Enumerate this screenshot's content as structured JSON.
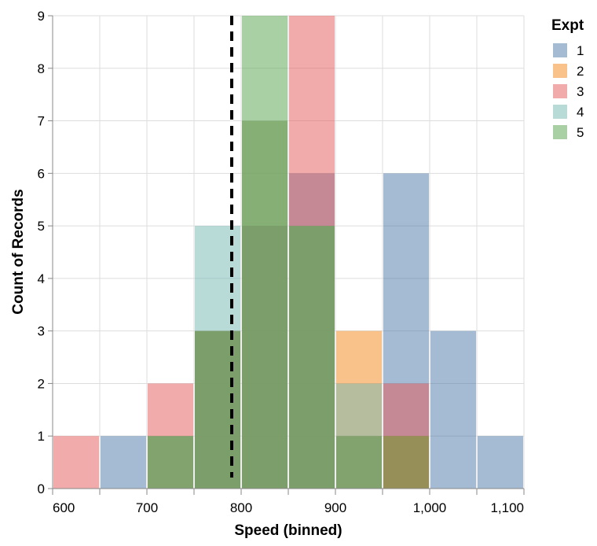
{
  "chart_data": {
    "type": "bar",
    "subtype": "overlaid-histogram",
    "title": "",
    "xlabel": "Speed (binned)",
    "ylabel": "Count of Records",
    "xlim": [
      600,
      1100
    ],
    "ylim": [
      0,
      9
    ],
    "x_ticks": [
      "600",
      "700",
      "800",
      "900",
      "1,000",
      "1,100"
    ],
    "y_ticks": [
      "0",
      "1",
      "2",
      "3",
      "4",
      "5",
      "6",
      "7",
      "8",
      "9"
    ],
    "bin_width": 50,
    "grid": true,
    "opacity": 0.5,
    "legend": {
      "title": "Expt",
      "position": "top-right"
    },
    "reference_line": {
      "x": 790,
      "style": "dashed",
      "color": "#000000"
    },
    "series": [
      {
        "name": "1",
        "color": "#4c78a8",
        "bins": [
          {
            "x0": 650,
            "x1": 700,
            "count": 1
          },
          {
            "x0": 750,
            "x1": 800,
            "count": 3
          },
          {
            "x0": 800,
            "x1": 850,
            "count": 5
          },
          {
            "x0": 850,
            "x1": 900,
            "count": 6
          },
          {
            "x0": 950,
            "x1": 1000,
            "count": 6
          },
          {
            "x0": 1000,
            "x1": 1050,
            "count": 3
          },
          {
            "x0": 1050,
            "x1": 1100,
            "count": 1
          }
        ]
      },
      {
        "name": "2",
        "color": "#f58518",
        "bins": [
          {
            "x0": 700,
            "x1": 750,
            "count": 1
          },
          {
            "x0": 750,
            "x1": 800,
            "count": 3
          },
          {
            "x0": 800,
            "x1": 850,
            "count": 7
          },
          {
            "x0": 850,
            "x1": 900,
            "count": 5
          },
          {
            "x0": 900,
            "x1": 950,
            "count": 3
          },
          {
            "x0": 950,
            "x1": 1000,
            "count": 1
          }
        ]
      },
      {
        "name": "3",
        "color": "#e45756",
        "bins": [
          {
            "x0": 600,
            "x1": 650,
            "count": 1
          },
          {
            "x0": 700,
            "x1": 750,
            "count": 2
          },
          {
            "x0": 750,
            "x1": 800,
            "count": 3
          },
          {
            "x0": 800,
            "x1": 850,
            "count": 5
          },
          {
            "x0": 850,
            "x1": 900,
            "count": 9
          },
          {
            "x0": 900,
            "x1": 950,
            "count": 1
          },
          {
            "x0": 950,
            "x1": 1000,
            "count": 2
          }
        ]
      },
      {
        "name": "4",
        "color": "#72b7b2",
        "bins": [
          {
            "x0": 700,
            "x1": 750,
            "count": 1
          },
          {
            "x0": 750,
            "x1": 800,
            "count": 5
          },
          {
            "x0": 800,
            "x1": 850,
            "count": 7
          },
          {
            "x0": 850,
            "x1": 900,
            "count": 5
          },
          {
            "x0": 900,
            "x1": 950,
            "count": 2
          }
        ]
      },
      {
        "name": "5",
        "color": "#54a24b",
        "bins": [
          {
            "x0": 700,
            "x1": 750,
            "count": 1
          },
          {
            "x0": 750,
            "x1": 800,
            "count": 3
          },
          {
            "x0": 800,
            "x1": 850,
            "count": 9
          },
          {
            "x0": 850,
            "x1": 900,
            "count": 5
          },
          {
            "x0": 900,
            "x1": 950,
            "count": 1
          },
          {
            "x0": 950,
            "x1": 1000,
            "count": 1
          }
        ]
      }
    ]
  }
}
